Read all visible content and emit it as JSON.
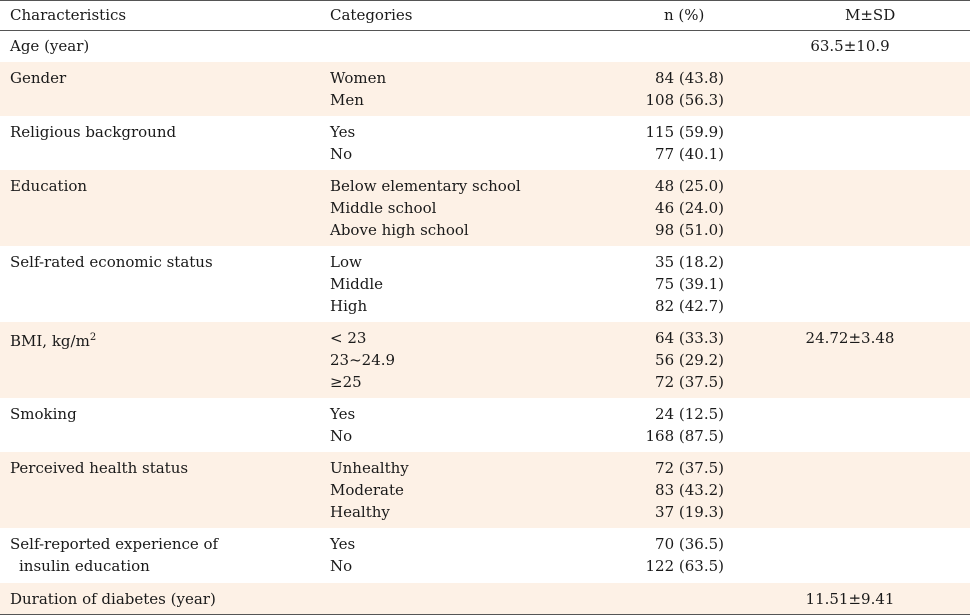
{
  "header": {
    "characteristics": "Characteristics",
    "categories": "Categories",
    "n_pct": "n (%)",
    "msd": "M±SD"
  },
  "rows": [
    {
      "name": "Age (year)",
      "cats": [],
      "ns": [],
      "msd": "63.5±10.9"
    },
    {
      "name": "Gender",
      "cats": [
        "Women",
        "Men"
      ],
      "ns": [
        "84 (43.8)",
        "108 (56.3)"
      ],
      "msd": ""
    },
    {
      "name": "Religious background",
      "cats": [
        "Yes",
        "No"
      ],
      "ns": [
        "115 (59.9)",
        "77 (40.1)"
      ],
      "msd": ""
    },
    {
      "name": "Education",
      "cats": [
        "Below elementary school",
        "Middle school",
        "Above high school"
      ],
      "ns": [
        "48 (25.0)",
        "46 (24.0)",
        "98 (51.0)"
      ],
      "msd": ""
    },
    {
      "name": "Self-rated economic status",
      "cats": [
        "Low",
        "Middle",
        "High"
      ],
      "ns": [
        "35 (18.2)",
        "75 (39.1)",
        "82 (42.7)"
      ],
      "msd": ""
    },
    {
      "name": "BMI, kg/m",
      "sup": "2",
      "cats": [
        "< 23",
        "23~24.9",
        "≥25"
      ],
      "ns": [
        "64 (33.3)",
        "56 (29.2)",
        "72 (37.5)"
      ],
      "msd": "24.72±3.48"
    },
    {
      "name": "Smoking",
      "cats": [
        "Yes",
        "No"
      ],
      "ns": [
        "24 (12.5)",
        "168 (87.5)"
      ],
      "msd": ""
    },
    {
      "name": "Perceived health status",
      "cats": [
        "Unhealthy",
        "Moderate",
        "Healthy"
      ],
      "ns": [
        "72 (37.5)",
        "83 (43.2)",
        "37 (19.3)"
      ],
      "msd": ""
    },
    {
      "name": "Self-reported experience of",
      "name2": "insulin education",
      "cats": [
        "Yes",
        "No"
      ],
      "ns": [
        "70 (36.5)",
        "122 (63.5)"
      ],
      "msd": ""
    },
    {
      "name": "Duration of diabetes (year)",
      "cats": [],
      "ns": [],
      "msd": "11.51±9.41"
    }
  ]
}
